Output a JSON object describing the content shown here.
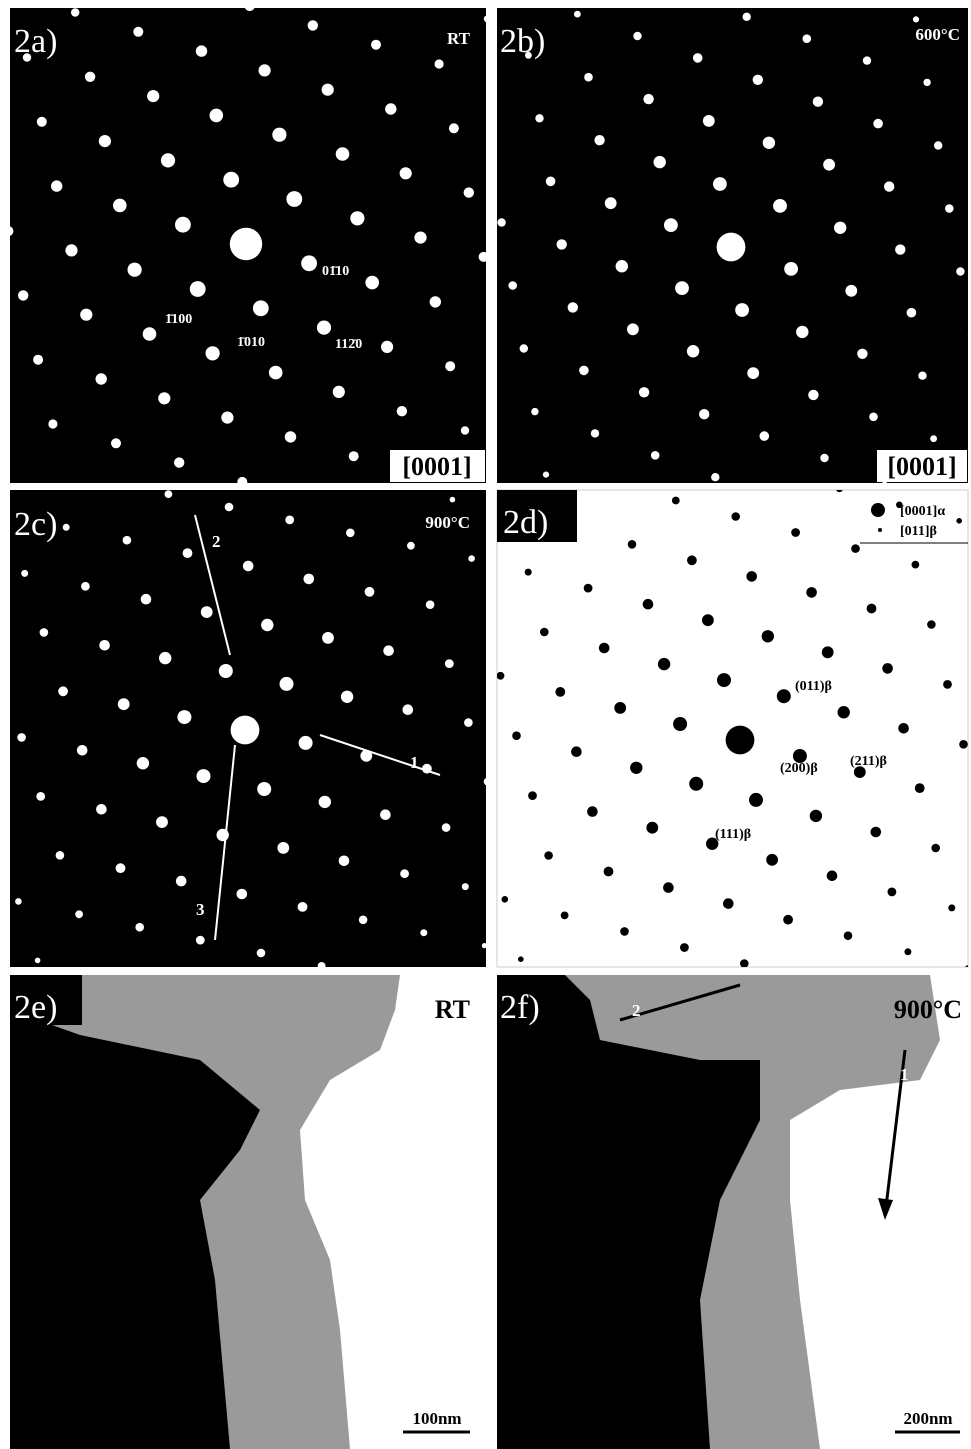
{
  "panels": [
    {
      "label": "2a)",
      "condition": "RT",
      "zone_axis": "[0001]",
      "indices": [
        "1̄100",
        "1̄010",
        "01̄10",
        "112̄0"
      ]
    },
    {
      "label": "2b)",
      "condition": "600°C",
      "zone_axis": "[0001]"
    },
    {
      "label": "2c)",
      "condition": "900°C",
      "arrows": [
        "1",
        "2",
        "3"
      ]
    },
    {
      "label": "2d)",
      "legend": [
        "[0001]α",
        "[011]β"
      ],
      "indices": [
        "(011)β",
        "(211)β",
        "(200)β",
        "(111)β"
      ]
    },
    {
      "label": "2e)",
      "condition": "RT",
      "scale_bar": "100nm"
    },
    {
      "label": "2f)",
      "condition": "900°C",
      "arrows": [
        "2",
        "1"
      ],
      "scale_bar": "200nm"
    }
  ]
}
